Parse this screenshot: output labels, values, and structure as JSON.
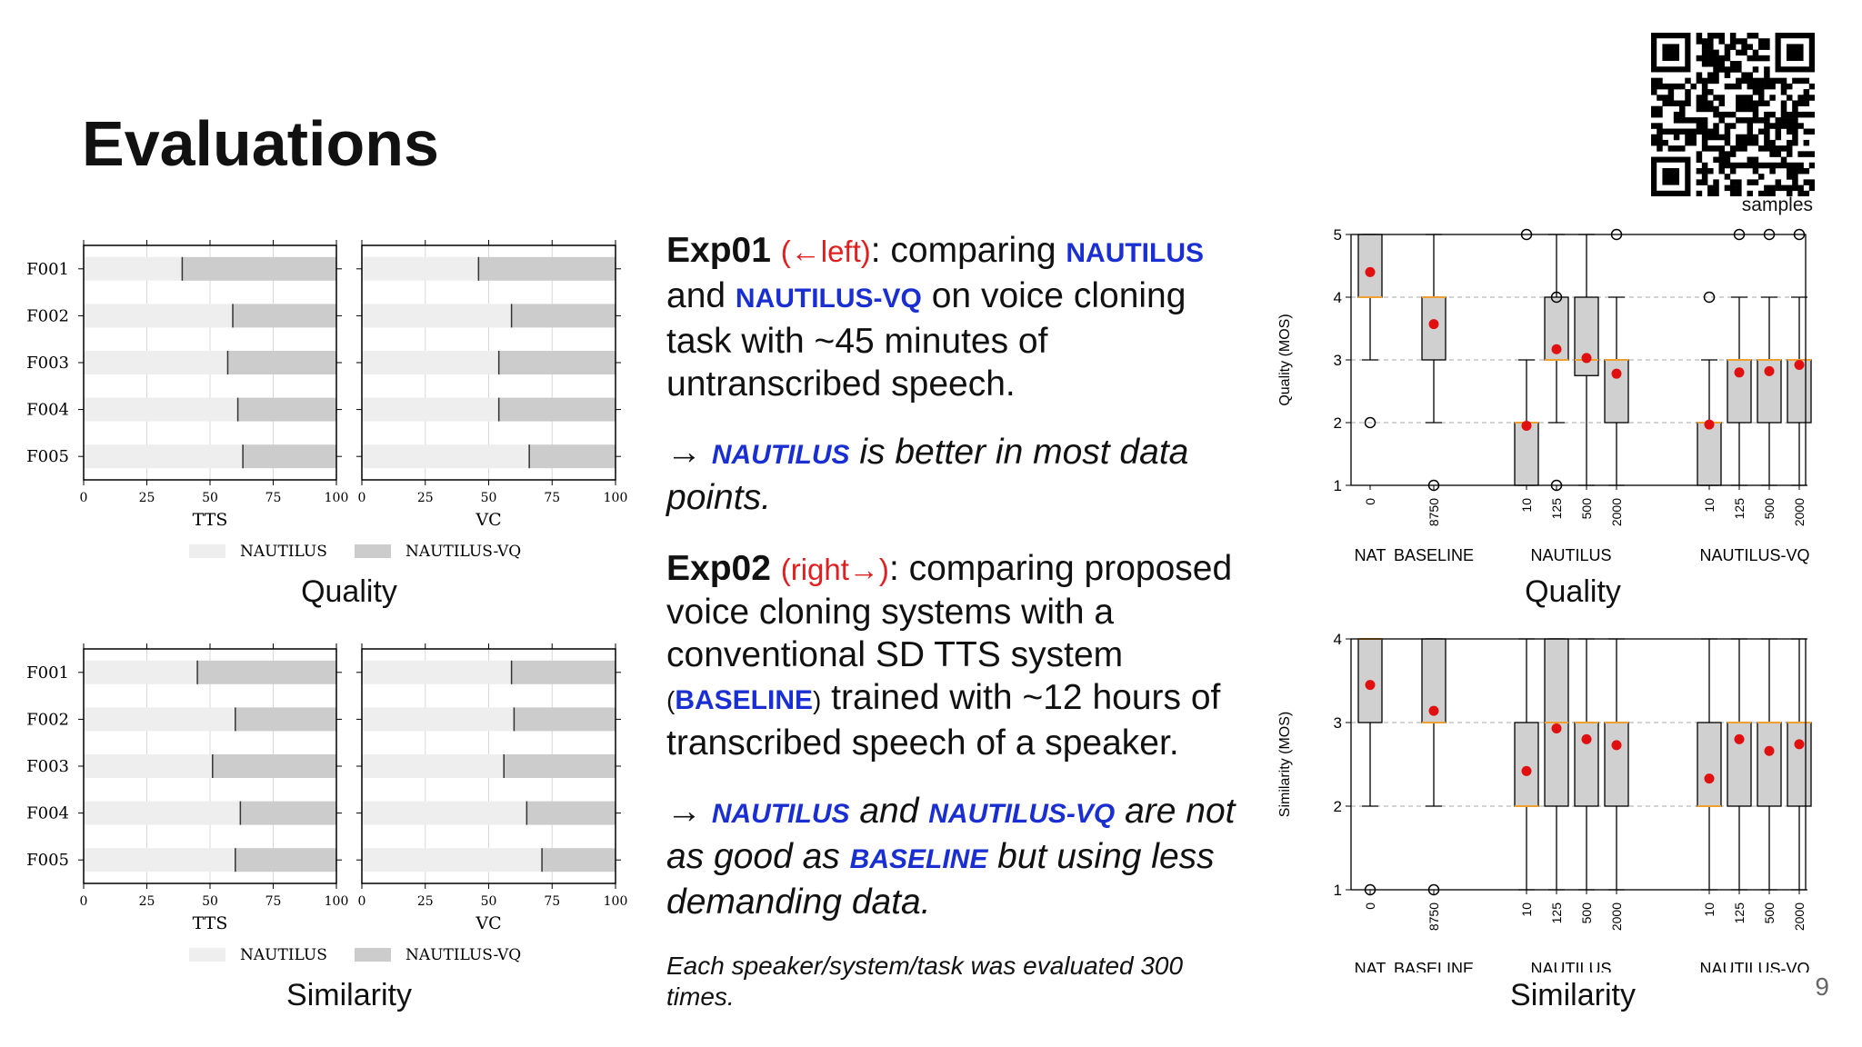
{
  "slide": {
    "title": "Evaluations",
    "page_number": "9",
    "qr_caption": "samples"
  },
  "left_charts": {
    "quality_caption": "Quality",
    "similarity_caption": "Similarity",
    "legend": [
      "NAUTILUS",
      "NAUTILUS-VQ"
    ]
  },
  "middle": {
    "exp01_head": "Exp01",
    "exp01_dir": "(←left)",
    "exp01_t1": ": comparing ",
    "exp01_k1": "NAUTILUS",
    "exp01_t2": "and ",
    "exp01_k2": "NAUTILUS-VQ",
    "exp01_t3": " on voice cloning task with ~45 minutes of untranscribed speech.",
    "exp01_arrow": "→ ",
    "exp01_k3": "NAUTILUS",
    "exp01_conc": " is better in most data points.",
    "exp02_head": "Exp02",
    "exp02_dir": "(right→)",
    "exp02_t1": ": comparing proposed voice cloning systems with a conventional SD TTS system ",
    "exp02_po": "(",
    "exp02_k1": "BASELINE",
    "exp02_pc": ")",
    "exp02_t2": " trained with ~12 hours of transcribed speech of a speaker.",
    "exp02_arrow": "→ ",
    "exp02_k2": "NAUTILUS",
    "exp02_t3": " and ",
    "exp02_k3": "NAUTILUS-VQ",
    "exp02_t4": " are not as good as ",
    "exp02_k4": "BASELINE",
    "exp02_t5": " but using less demanding data.",
    "footnote": "Each speaker/system/task was evaluated 300 times."
  },
  "right_charts": {
    "quality_caption": "Quality",
    "similarity_caption": "Similarity"
  },
  "chart_data": [
    {
      "type": "bar",
      "stacked": true,
      "orientation": "horizontal",
      "caption": "Quality",
      "xlabel": "TTS",
      "categories": [
        "F001",
        "F002",
        "F003",
        "F004",
        "F005"
      ],
      "xlim": [
        0,
        100
      ],
      "xticks": [
        0,
        25,
        50,
        75,
        100
      ],
      "series": [
        {
          "name": "NAUTILUS",
          "color": "#eeeeee",
          "values": [
            39,
            59,
            57,
            61,
            63
          ]
        },
        {
          "name": "NAUTILUS-VQ",
          "color": "#cccccc",
          "values": [
            61,
            41,
            43,
            39,
            37
          ]
        }
      ],
      "grid": true,
      "legend": "bottom"
    },
    {
      "type": "bar",
      "stacked": true,
      "orientation": "horizontal",
      "caption": "Quality",
      "xlabel": "VC",
      "categories": [
        "F001",
        "F002",
        "F003",
        "F004",
        "F005"
      ],
      "xlim": [
        0,
        100
      ],
      "xticks": [
        0,
        25,
        50,
        75,
        100
      ],
      "series": [
        {
          "name": "NAUTILUS",
          "color": "#eeeeee",
          "values": [
            46,
            59,
            54,
            54,
            66
          ]
        },
        {
          "name": "NAUTILUS-VQ",
          "color": "#cccccc",
          "values": [
            54,
            41,
            46,
            46,
            34
          ]
        }
      ],
      "grid": true,
      "legend": "bottom"
    },
    {
      "type": "bar",
      "stacked": true,
      "orientation": "horizontal",
      "caption": "Similarity",
      "xlabel": "TTS",
      "categories": [
        "F001",
        "F002",
        "F003",
        "F004",
        "F005"
      ],
      "xlim": [
        0,
        100
      ],
      "xticks": [
        0,
        25,
        50,
        75,
        100
      ],
      "series": [
        {
          "name": "NAUTILUS",
          "color": "#eeeeee",
          "values": [
            45,
            60,
            51,
            62,
            60
          ]
        },
        {
          "name": "NAUTILUS-VQ",
          "color": "#cccccc",
          "values": [
            55,
            40,
            49,
            38,
            40
          ]
        }
      ],
      "grid": true,
      "legend": "bottom"
    },
    {
      "type": "bar",
      "stacked": true,
      "orientation": "horizontal",
      "caption": "Similarity",
      "xlabel": "VC",
      "categories": [
        "F001",
        "F002",
        "F003",
        "F004",
        "F005"
      ],
      "xlim": [
        0,
        100
      ],
      "xticks": [
        0,
        25,
        50,
        75,
        100
      ],
      "series": [
        {
          "name": "NAUTILUS",
          "color": "#eeeeee",
          "values": [
            59,
            60,
            56,
            65,
            71
          ]
        },
        {
          "name": "NAUTILUS-VQ",
          "color": "#cccccc",
          "values": [
            41,
            40,
            44,
            35,
            29
          ]
        }
      ],
      "grid": true,
      "legend": "bottom"
    },
    {
      "type": "box",
      "caption": "Quality",
      "ylabel": "Quality (MOS)",
      "ylim": [
        1,
        5
      ],
      "yticks": [
        1,
        2,
        3,
        4,
        5
      ],
      "grid": true,
      "groups": [
        "NAT",
        "BASELINE",
        "NAUTILUS",
        "NAUTILUS-VQ"
      ],
      "boxes": [
        {
          "group": "NAT",
          "label": "0",
          "whislo": 3,
          "q1": 4,
          "med": 4,
          "q3": 5,
          "whishi": 5,
          "mean": 4.4,
          "fliers": [
            2
          ]
        },
        {
          "group": "BASELINE",
          "label": "8750",
          "whislo": 2,
          "q1": 3,
          "med": 4,
          "q3": 4,
          "whishi": 5,
          "mean": 3.57,
          "fliers": [
            1
          ]
        },
        {
          "group": "NAUTILUS",
          "label": "10",
          "whislo": 1,
          "q1": 1,
          "med": 2,
          "q3": 2,
          "whishi": 3,
          "mean": 1.95,
          "fliers": [
            5
          ]
        },
        {
          "group": "NAUTILUS",
          "label": "125",
          "whislo": 2,
          "q1": 3,
          "med": 3,
          "q3": 4,
          "whishi": 5,
          "mean": 3.17,
          "fliers": [
            1,
            4
          ]
        },
        {
          "group": "NAUTILUS",
          "label": "500",
          "whislo": 1,
          "q1": 2.75,
          "med": 3,
          "q3": 4,
          "whishi": 5,
          "mean": 3.03,
          "fliers": []
        },
        {
          "group": "NAUTILUS",
          "label": "2000",
          "whislo": 1,
          "q1": 2,
          "med": 3,
          "q3": 3,
          "whishi": 4,
          "mean": 2.78,
          "fliers": [
            5
          ]
        },
        {
          "group": "NAUTILUS-VQ",
          "label": "10",
          "whislo": 1,
          "q1": 1,
          "med": 2,
          "q3": 2,
          "whishi": 3,
          "mean": 1.97,
          "fliers": [
            4
          ]
        },
        {
          "group": "NAUTILUS-VQ",
          "label": "125",
          "whislo": 1,
          "q1": 2,
          "med": 3,
          "q3": 3,
          "whishi": 4,
          "mean": 2.8,
          "fliers": [
            5
          ]
        },
        {
          "group": "NAUTILUS-VQ",
          "label": "500",
          "whislo": 1,
          "q1": 2,
          "med": 3,
          "q3": 3,
          "whishi": 4,
          "mean": 2.82,
          "fliers": [
            5
          ]
        },
        {
          "group": "NAUTILUS-VQ",
          "label": "2000",
          "whislo": 1,
          "q1": 2,
          "med": 3,
          "q3": 3,
          "whishi": 4,
          "mean": 2.92,
          "fliers": [
            5
          ]
        }
      ]
    },
    {
      "type": "box",
      "caption": "Similarity",
      "ylabel": "Similarity (MOS)",
      "ylim": [
        1,
        4
      ],
      "yticks": [
        1,
        2,
        3,
        4
      ],
      "grid": true,
      "groups": [
        "NAT",
        "BASELINE",
        "NAUTILUS",
        "NAUTILUS-VQ"
      ],
      "boxes": [
        {
          "group": "NAT",
          "label": "0",
          "whislo": 2,
          "q1": 3,
          "med": 4,
          "q3": 4,
          "whishi": 4,
          "mean": 3.45,
          "fliers": [
            1
          ]
        },
        {
          "group": "BASELINE",
          "label": "8750",
          "whislo": 2,
          "q1": 3,
          "med": 3,
          "q3": 4,
          "whishi": 4,
          "mean": 3.14,
          "fliers": [
            1
          ]
        },
        {
          "group": "NAUTILUS",
          "label": "10",
          "whislo": 1,
          "q1": 2,
          "med": 2,
          "q3": 3,
          "whishi": 4,
          "mean": 2.42,
          "fliers": []
        },
        {
          "group": "NAUTILUS",
          "label": "125",
          "whislo": 1,
          "q1": 2,
          "med": 3,
          "q3": 4,
          "whishi": 4,
          "mean": 2.93,
          "fliers": []
        },
        {
          "group": "NAUTILUS",
          "label": "500",
          "whislo": 1,
          "q1": 2,
          "med": 3,
          "q3": 3,
          "whishi": 4,
          "mean": 2.8,
          "fliers": []
        },
        {
          "group": "NAUTILUS",
          "label": "2000",
          "whislo": 1,
          "q1": 2,
          "med": 3,
          "q3": 3,
          "whishi": 4,
          "mean": 2.73,
          "fliers": []
        },
        {
          "group": "NAUTILUS-VQ",
          "label": "10",
          "whislo": 1,
          "q1": 2,
          "med": 2,
          "q3": 3,
          "whishi": 4,
          "mean": 2.33,
          "fliers": []
        },
        {
          "group": "NAUTILUS-VQ",
          "label": "125",
          "whislo": 1,
          "q1": 2,
          "med": 3,
          "q3": 3,
          "whishi": 4,
          "mean": 2.8,
          "fliers": []
        },
        {
          "group": "NAUTILUS-VQ",
          "label": "500",
          "whislo": 1,
          "q1": 2,
          "med": 3,
          "q3": 3,
          "whishi": 4,
          "mean": 2.66,
          "fliers": []
        },
        {
          "group": "NAUTILUS-VQ",
          "label": "2000",
          "whislo": 1,
          "q1": 2,
          "med": 3,
          "q3": 3,
          "whishi": 4,
          "mean": 2.74,
          "fliers": []
        }
      ]
    }
  ]
}
